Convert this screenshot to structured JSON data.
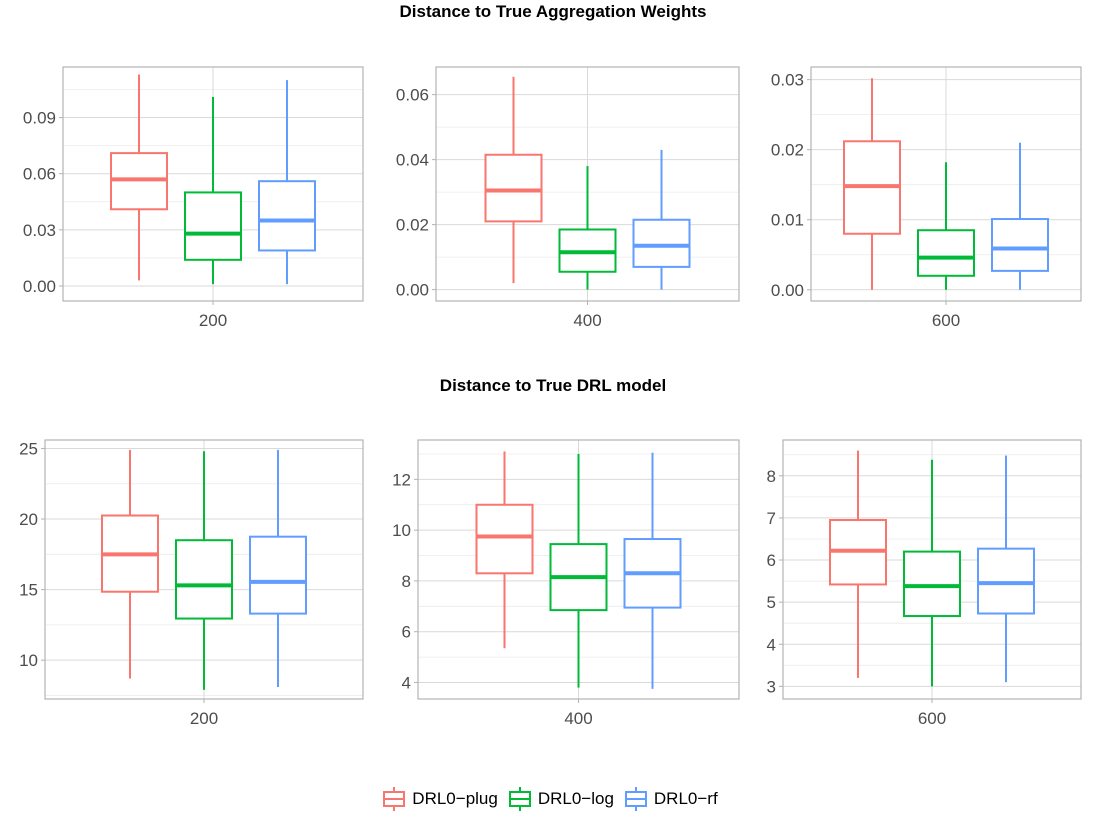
{
  "titles": {
    "top": "Distance to True Aggregation Weights",
    "bottom": "Distance to True DRL model"
  },
  "legend": [
    {
      "name": "DRL0−plug",
      "color": "#F8766D"
    },
    {
      "name": "DRL0−log",
      "color": "#00BA38"
    },
    {
      "name": "DRL0−rf",
      "color": "#619CFF"
    }
  ],
  "chart_data": [
    {
      "type": "boxplot",
      "group": "Distance to True Aggregation Weights",
      "categories": [
        "200"
      ],
      "ylim": [
        -0.008,
        0.117
      ],
      "yticks": [
        0.0,
        0.03,
        0.06,
        0.09
      ],
      "ytick_labels": [
        "0.00",
        "0.03",
        "0.06",
        "0.09"
      ],
      "series": [
        {
          "name": "DRL0−plug",
          "min": 0.003,
          "q1": 0.041,
          "median": 0.057,
          "q3": 0.071,
          "max": 0.113
        },
        {
          "name": "DRL0−log",
          "min": 0.001,
          "q1": 0.014,
          "median": 0.028,
          "q3": 0.05,
          "max": 0.101
        },
        {
          "name": "DRL0−rf",
          "min": 0.001,
          "q1": 0.019,
          "median": 0.035,
          "q3": 0.056,
          "max": 0.11
        }
      ]
    },
    {
      "type": "boxplot",
      "group": "Distance to True Aggregation Weights",
      "categories": [
        "400"
      ],
      "ylim": [
        -0.0035,
        0.0685
      ],
      "yticks": [
        0.0,
        0.02,
        0.04,
        0.06
      ],
      "ytick_labels": [
        "0.00",
        "0.02",
        "0.04",
        "0.06"
      ],
      "series": [
        {
          "name": "DRL0−plug",
          "min": 0.002,
          "q1": 0.021,
          "median": 0.0305,
          "q3": 0.0415,
          "max": 0.0655
        },
        {
          "name": "DRL0−log",
          "min": 0.0,
          "q1": 0.0055,
          "median": 0.0115,
          "q3": 0.0185,
          "max": 0.038
        },
        {
          "name": "DRL0−rf",
          "min": 0.0,
          "q1": 0.007,
          "median": 0.0135,
          "q3": 0.0215,
          "max": 0.043
        }
      ]
    },
    {
      "type": "boxplot",
      "group": "Distance to True Aggregation Weights",
      "categories": [
        "600"
      ],
      "ylim": [
        -0.0016,
        0.0318
      ],
      "yticks": [
        0.0,
        0.01,
        0.02,
        0.03
      ],
      "ytick_labels": [
        "0.00",
        "0.01",
        "0.02",
        "0.03"
      ],
      "series": [
        {
          "name": "DRL0−plug",
          "min": 0.0,
          "q1": 0.008,
          "median": 0.0148,
          "q3": 0.0212,
          "max": 0.0302
        },
        {
          "name": "DRL0−log",
          "min": 0.0,
          "q1": 0.002,
          "median": 0.0046,
          "q3": 0.0085,
          "max": 0.0182
        },
        {
          "name": "DRL0−rf",
          "min": 0.0,
          "q1": 0.0027,
          "median": 0.0059,
          "q3": 0.0101,
          "max": 0.021
        }
      ]
    },
    {
      "type": "boxplot",
      "group": "Distance to True DRL model",
      "categories": [
        "200"
      ],
      "ylim": [
        7.25,
        25.6
      ],
      "yticks": [
        10,
        15,
        20,
        25
      ],
      "ytick_labels": [
        "10",
        "15",
        "20",
        "25"
      ],
      "series": [
        {
          "name": "DRL0−plug",
          "min": 8.7,
          "q1": 14.85,
          "median": 17.5,
          "q3": 20.25,
          "max": 24.9
        },
        {
          "name": "DRL0−log",
          "min": 7.9,
          "q1": 12.95,
          "median": 15.3,
          "q3": 18.5,
          "max": 24.8
        },
        {
          "name": "DRL0−rf",
          "min": 8.1,
          "q1": 13.3,
          "median": 15.55,
          "q3": 18.75,
          "max": 24.9
        }
      ]
    },
    {
      "type": "boxplot",
      "group": "Distance to True DRL model",
      "categories": [
        "400"
      ],
      "ylim": [
        3.35,
        13.55
      ],
      "yticks": [
        4,
        6,
        8,
        10,
        12
      ],
      "ytick_labels": [
        "4",
        "6",
        "8",
        "10",
        "12"
      ],
      "series": [
        {
          "name": "DRL0−plug",
          "min": 5.35,
          "q1": 8.3,
          "median": 9.75,
          "q3": 11.0,
          "max": 13.1
        },
        {
          "name": "DRL0−log",
          "min": 3.8,
          "q1": 6.85,
          "median": 8.15,
          "q3": 9.45,
          "max": 13.0
        },
        {
          "name": "DRL0−rf",
          "min": 3.75,
          "q1": 6.95,
          "median": 8.3,
          "q3": 9.65,
          "max": 13.05
        }
      ]
    },
    {
      "type": "boxplot",
      "group": "Distance to True DRL model",
      "categories": [
        "600"
      ],
      "ylim": [
        2.7,
        8.85
      ],
      "yticks": [
        3,
        4,
        5,
        6,
        7,
        8
      ],
      "ytick_labels": [
        "3",
        "4",
        "5",
        "6",
        "7",
        "8"
      ],
      "series": [
        {
          "name": "DRL0−plug",
          "min": 3.2,
          "q1": 5.42,
          "median": 6.22,
          "q3": 6.95,
          "max": 8.6
        },
        {
          "name": "DRL0−log",
          "min": 3.0,
          "q1": 4.67,
          "median": 5.38,
          "q3": 6.2,
          "max": 8.38
        },
        {
          "name": "DRL0−rf",
          "min": 3.1,
          "q1": 4.73,
          "median": 5.45,
          "q3": 6.27,
          "max": 8.48
        }
      ]
    }
  ]
}
